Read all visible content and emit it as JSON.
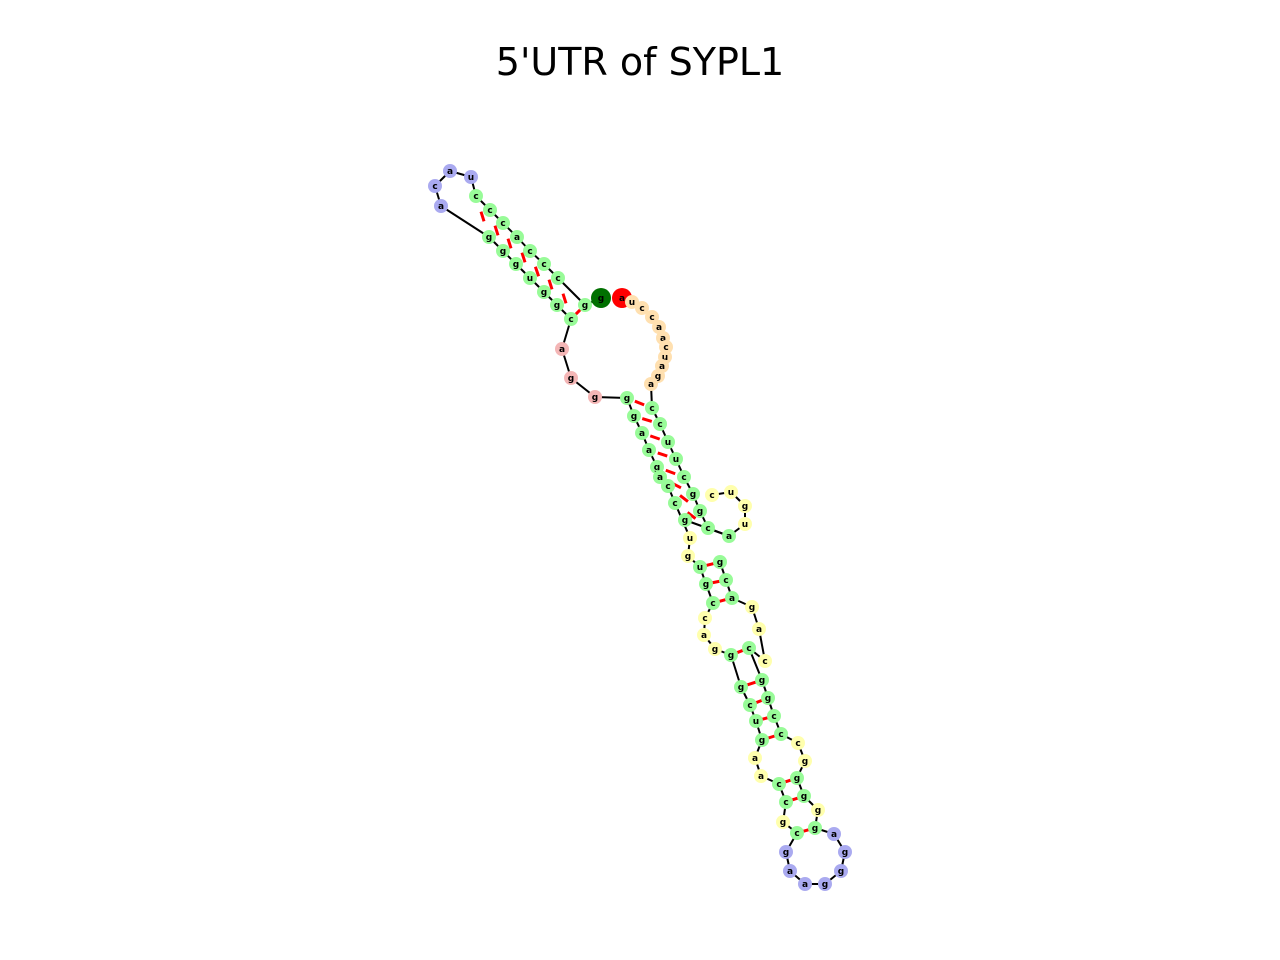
{
  "title": "5'UTR of SYPL1",
  "colors": {
    "stem": "#98fb98",
    "hairpin_loop": "#aaaaf0",
    "interior_loop": "#ffffad",
    "multi_loop": "#f4b6b6",
    "unpaired_3prime": "#ffe0b0",
    "five_prime_end": "#007000",
    "three_prime_end": "#ff0000",
    "pair_bond": "#ff0000",
    "backbone": "#000000"
  },
  "hairpin_1": {
    "stem_5p_side": [
      "g",
      "g",
      "g",
      "u",
      "g",
      "g",
      "c"
    ],
    "stem_3p_side": [
      "c",
      "c",
      "c",
      "a",
      "c",
      "c",
      "c"
    ],
    "loop": [
      "a",
      "c",
      "a",
      "u"
    ]
  },
  "multiloop": [
    "a",
    "g",
    "g"
  ],
  "ends": {
    "five_prime": "g",
    "three_prime": "a"
  },
  "three_prime_tail": [
    "u",
    "c",
    "c",
    "a",
    "a",
    "c",
    "u",
    "a",
    "g",
    "a"
  ],
  "hairpin_2": {
    "helix_1": {
      "left": [
        "g",
        "g",
        "a",
        "a",
        "g",
        "a",
        "c",
        "c",
        "g"
      ],
      "right": [
        "c",
        "c",
        "u",
        "u",
        "c",
        "g",
        "g",
        "c",
        "a"
      ]
    },
    "bulge_1": [
      "c",
      "u",
      "g",
      "u"
    ],
    "helix_2": {
      "left": [
        "u",
        "g",
        "c"
      ],
      "right": [
        "a",
        "c",
        "g"
      ]
    },
    "loop_1_left": [
      "g",
      "u"
    ],
    "loop_2_left": [
      "c",
      "a",
      "g"
    ],
    "loop_2_right": [
      "c",
      "a",
      "g"
    ],
    "helix_3": {
      "left": [
        "g",
        "g",
        "c",
        "u",
        "g"
      ],
      "right": [
        "c",
        "c",
        "g",
        "g",
        "c"
      ]
    },
    "loop_3_left": [
      "a",
      "a"
    ],
    "loop_3_right": [
      "g",
      "c"
    ],
    "helix_4": {
      "left": [
        "c",
        "c"
      ],
      "right": [
        "g",
        "g"
      ]
    },
    "loop_4_left": [
      "g"
    ],
    "loop_4_right": [
      "g"
    ],
    "terminal_pair": {
      "left": "c",
      "right": "g"
    },
    "hairpin_loop": [
      "g",
      "a",
      "a",
      "g",
      "g",
      "g",
      "a"
    ]
  }
}
